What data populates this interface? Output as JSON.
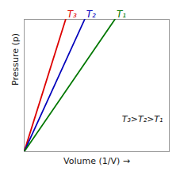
{
  "chart_data": {
    "type": "line",
    "xlabel": "Volume (1/V) →",
    "ylabel": "Pressure (p)",
    "series": [
      {
        "name": "T₃",
        "color": "#dd0000",
        "x": [
          0,
          0.2857142857142857
        ],
        "values": [
          0,
          1
        ]
      },
      {
        "name": "T₂",
        "color": "#0000bb",
        "x": [
          0,
          0.4166666666666667
        ],
        "values": [
          0,
          1
        ]
      },
      {
        "name": "T₁",
        "color": "#007700",
        "x": [
          0,
          0.625
        ],
        "values": [
          0,
          1
        ]
      }
    ],
    "annotation": "T₃>T₂>T₁",
    "xlim": [
      0,
      1
    ],
    "ylim": [
      0,
      1
    ],
    "xticks": [],
    "yticks": [],
    "tick_labels": false,
    "grid": false
  }
}
